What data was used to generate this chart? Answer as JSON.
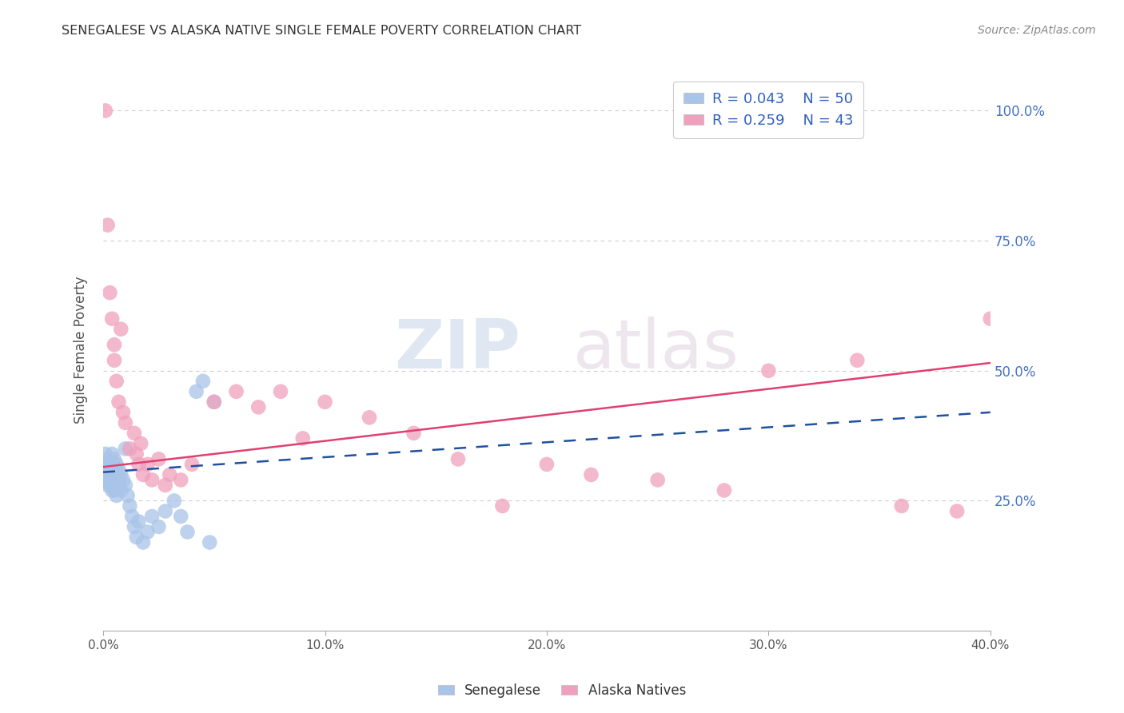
{
  "title": "SENEGALESE VS ALASKA NATIVE SINGLE FEMALE POVERTY CORRELATION CHART",
  "source": "Source: ZipAtlas.com",
  "ylabel": "Single Female Poverty",
  "ytick_labels": [
    "100.0%",
    "75.0%",
    "50.0%",
    "25.0%"
  ],
  "ytick_positions": [
    1.0,
    0.75,
    0.5,
    0.25
  ],
  "watermark_zip": "ZIP",
  "watermark_atlas": "atlas",
  "legend_blue_r": "R = 0.043",
  "legend_blue_n": "N = 50",
  "legend_pink_r": "R = 0.259",
  "legend_pink_n": "N = 43",
  "blue_color": "#a8c4e8",
  "pink_color": "#f0a0bc",
  "blue_line_color": "#2050a0",
  "pink_line_color": "#e04070",
  "blue_scatter_x": [
    0.0,
    0.001,
    0.001,
    0.001,
    0.002,
    0.002,
    0.002,
    0.002,
    0.002,
    0.003,
    0.003,
    0.003,
    0.003,
    0.003,
    0.004,
    0.004,
    0.004,
    0.004,
    0.005,
    0.005,
    0.005,
    0.005,
    0.006,
    0.006,
    0.006,
    0.007,
    0.007,
    0.008,
    0.008,
    0.009,
    0.01,
    0.01,
    0.011,
    0.012,
    0.013,
    0.014,
    0.015,
    0.016,
    0.018,
    0.02,
    0.022,
    0.025,
    0.028,
    0.032,
    0.035,
    0.038,
    0.042,
    0.045,
    0.048,
    0.05
  ],
  "blue_scatter_y": [
    0.32,
    0.31,
    0.34,
    0.3,
    0.33,
    0.29,
    0.31,
    0.3,
    0.28,
    0.32,
    0.31,
    0.29,
    0.3,
    0.28,
    0.34,
    0.31,
    0.29,
    0.27,
    0.33,
    0.3,
    0.28,
    0.27,
    0.32,
    0.29,
    0.26,
    0.31,
    0.28,
    0.3,
    0.27,
    0.29,
    0.35,
    0.28,
    0.26,
    0.24,
    0.22,
    0.2,
    0.18,
    0.21,
    0.17,
    0.19,
    0.22,
    0.2,
    0.23,
    0.25,
    0.22,
    0.19,
    0.46,
    0.48,
    0.17,
    0.44
  ],
  "pink_scatter_x": [
    0.001,
    0.002,
    0.003,
    0.004,
    0.005,
    0.005,
    0.006,
    0.007,
    0.008,
    0.009,
    0.01,
    0.012,
    0.014,
    0.015,
    0.016,
    0.017,
    0.018,
    0.02,
    0.022,
    0.025,
    0.028,
    0.03,
    0.035,
    0.04,
    0.05,
    0.06,
    0.07,
    0.08,
    0.09,
    0.1,
    0.12,
    0.14,
    0.16,
    0.18,
    0.2,
    0.22,
    0.25,
    0.28,
    0.3,
    0.34,
    0.36,
    0.385,
    0.4
  ],
  "pink_scatter_y": [
    1.0,
    0.78,
    0.65,
    0.6,
    0.55,
    0.52,
    0.48,
    0.44,
    0.58,
    0.42,
    0.4,
    0.35,
    0.38,
    0.34,
    0.32,
    0.36,
    0.3,
    0.32,
    0.29,
    0.33,
    0.28,
    0.3,
    0.29,
    0.32,
    0.44,
    0.46,
    0.43,
    0.46,
    0.37,
    0.44,
    0.41,
    0.38,
    0.33,
    0.24,
    0.32,
    0.3,
    0.29,
    0.27,
    0.5,
    0.52,
    0.24,
    0.23,
    0.6
  ],
  "blue_trend_x": [
    0.0,
    0.4
  ],
  "blue_trend_y": [
    0.305,
    0.42
  ],
  "pink_trend_x": [
    0.0,
    0.4
  ],
  "pink_trend_y": [
    0.315,
    0.515
  ],
  "xlim": [
    0.0,
    0.4
  ],
  "ylim": [
    0.0,
    1.08
  ],
  "background_color": "#ffffff",
  "grid_color": "#cccccc"
}
